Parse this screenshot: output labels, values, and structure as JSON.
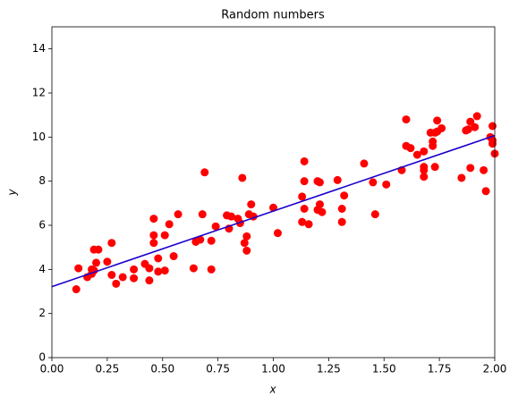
{
  "chart_data": {
    "type": "scatter",
    "title": "Random numbers",
    "x_label": "x",
    "y_label": "y",
    "xlim": [
      0,
      2
    ],
    "ylim": [
      0,
      15
    ],
    "xticks": [
      {
        "value": 0,
        "label": "0.00"
      },
      {
        "value": 0.25,
        "label": "0.25"
      },
      {
        "value": 0.5,
        "label": "0.50"
      },
      {
        "value": 0.75,
        "label": "0.75"
      },
      {
        "value": 1,
        "label": "1.00"
      },
      {
        "value": 1.25,
        "label": "1.25"
      },
      {
        "value": 1.5,
        "label": "1.50"
      },
      {
        "value": 1.75,
        "label": "1.75"
      },
      {
        "value": 2,
        "label": "2.00"
      }
    ],
    "yticks": [
      0,
      2,
      4,
      6,
      8,
      10,
      12,
      14
    ],
    "points": {
      "color": "#ff0000",
      "x": [
        0.11,
        0.12,
        0.16,
        0.18,
        0.18,
        0.19,
        0.19,
        0.2,
        0.21,
        0.25,
        0.27,
        0.27,
        0.29,
        0.32,
        0.37,
        0.37,
        0.42,
        0.44,
        0.44,
        0.46,
        0.46,
        0.46,
        0.48,
        0.48,
        0.51,
        0.51,
        0.53,
        0.55,
        0.57,
        0.64,
        0.65,
        0.67,
        0.68,
        0.69,
        0.72,
        0.72,
        0.74,
        0.79,
        0.8,
        0.81,
        0.84,
        0.85,
        0.86,
        0.87,
        0.88,
        0.88,
        0.89,
        0.9,
        0.91,
        1.0,
        1.02,
        1.13,
        1.13,
        1.14,
        1.14,
        1.14,
        1.16,
        1.2,
        1.2,
        1.21,
        1.22,
        1.21,
        1.29,
        1.31,
        1.31,
        1.32,
        1.41,
        1.45,
        1.46,
        1.51,
        1.58,
        1.6,
        1.6,
        1.62,
        1.65,
        1.68,
        1.68,
        1.68,
        1.68,
        1.71,
        1.72,
        1.72,
        1.73,
        1.73,
        1.74,
        1.74,
        1.76,
        1.85,
        1.87,
        1.88,
        1.89,
        1.89,
        1.91,
        1.92,
        1.95,
        1.96,
        1.98,
        1.99,
        1.99,
        2.0,
        1.99
      ],
      "values": [
        3.1,
        4.05,
        3.65,
        3.8,
        4.0,
        3.95,
        4.9,
        4.3,
        4.9,
        4.35,
        5.2,
        3.75,
        3.35,
        3.65,
        3.6,
        4.0,
        4.25,
        3.5,
        4.05,
        5.2,
        5.55,
        6.3,
        4.5,
        3.9,
        3.95,
        5.55,
        6.05,
        4.6,
        6.5,
        4.05,
        5.25,
        5.35,
        6.5,
        8.4,
        5.3,
        4.0,
        5.95,
        6.45,
        5.85,
        6.4,
        6.3,
        6.1,
        8.15,
        5.2,
        4.85,
        5.5,
        6.5,
        6.95,
        6.4,
        6.8,
        5.65,
        7.3,
        6.15,
        8.0,
        6.75,
        8.9,
        6.05,
        8.0,
        6.7,
        6.95,
        6.6,
        7.95,
        8.05,
        6.75,
        6.15,
        7.35,
        8.8,
        7.95,
        6.5,
        7.85,
        8.5,
        9.6,
        10.8,
        9.5,
        9.2,
        8.5,
        8.2,
        8.65,
        9.35,
        10.2,
        9.8,
        9.6,
        10.2,
        8.65,
        10.75,
        10.25,
        10.4,
        8.15,
        10.3,
        10.35,
        8.6,
        10.7,
        10.45,
        10.95,
        8.5,
        7.55,
        10.0,
        9.85,
        10.5,
        9.25,
        9.7
      ]
    },
    "fit_line": {
      "color": "#1a00cc",
      "x": [
        0,
        2
      ],
      "values": [
        3.22,
        10.07
      ]
    }
  }
}
